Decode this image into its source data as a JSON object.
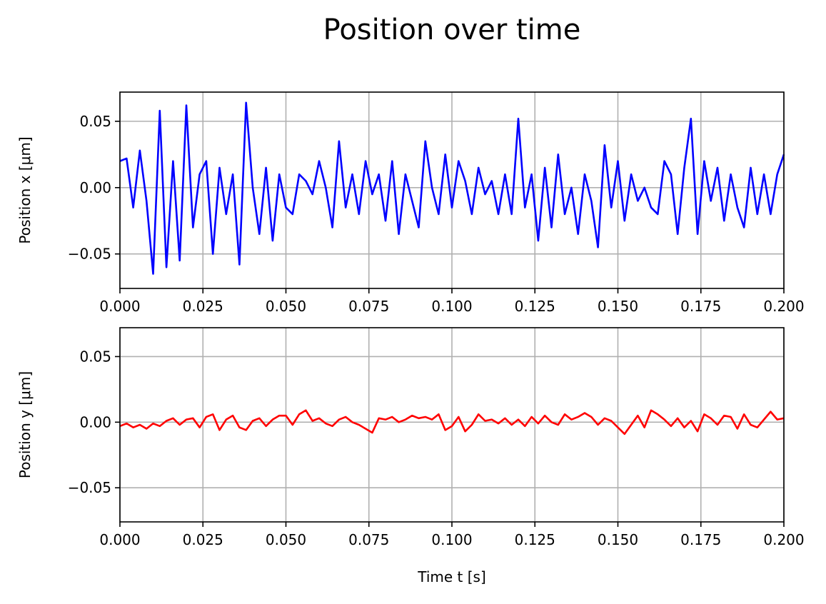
{
  "title": "Position over time",
  "chart_data": [
    {
      "type": "line",
      "ylabel": "Position x [μm]",
      "xlim": [
        0,
        0.2
      ],
      "ylim": [
        -0.076,
        0.072
      ],
      "grid": true,
      "xticks": [
        {
          "value": 0,
          "label": "0.000"
        },
        {
          "value": 0.025,
          "label": "0.025"
        },
        {
          "value": 0.05,
          "label": "0.050"
        },
        {
          "value": 0.075,
          "label": "0.075"
        },
        {
          "value": 0.1,
          "label": "0.100"
        },
        {
          "value": 0.125,
          "label": "0.125"
        },
        {
          "value": 0.15,
          "label": "0.150"
        },
        {
          "value": 0.175,
          "label": "0.175"
        },
        {
          "value": 0.2,
          "label": "0.200"
        }
      ],
      "yticks": [
        {
          "value": -0.05,
          "label": "−0.05"
        },
        {
          "value": 0,
          "label": "0.00"
        },
        {
          "value": 0.05,
          "label": "0.05"
        }
      ],
      "x": [
        0,
        0.002,
        0.004,
        0.006,
        0.008,
        0.01,
        0.012,
        0.014,
        0.016,
        0.018,
        0.02,
        0.022,
        0.024,
        0.026,
        0.028,
        0.03,
        0.032,
        0.034,
        0.036,
        0.038,
        0.04,
        0.042,
        0.044,
        0.046,
        0.048,
        0.05,
        0.052,
        0.054,
        0.056,
        0.058,
        0.06,
        0.062,
        0.064,
        0.066,
        0.068,
        0.07,
        0.072,
        0.074,
        0.076,
        0.078,
        0.08,
        0.082,
        0.084,
        0.086,
        0.088,
        0.09,
        0.092,
        0.094,
        0.096,
        0.098,
        0.1,
        0.102,
        0.104,
        0.106,
        0.108,
        0.11,
        0.112,
        0.114,
        0.116,
        0.118,
        0.12,
        0.122,
        0.124,
        0.126,
        0.128,
        0.13,
        0.132,
        0.134,
        0.136,
        0.138,
        0.14,
        0.142,
        0.144,
        0.146,
        0.148,
        0.15,
        0.152,
        0.154,
        0.156,
        0.158,
        0.16,
        0.162,
        0.164,
        0.166,
        0.168,
        0.17,
        0.172,
        0.174,
        0.176,
        0.178,
        0.18,
        0.182,
        0.184,
        0.186,
        0.188,
        0.19,
        0.192,
        0.194,
        0.196,
        0.198,
        0.2
      ],
      "series": [
        {
          "name": "Position x",
          "color": "#0000ff",
          "values": [
            0.02,
            0.022,
            -0.015,
            0.028,
            -0.01,
            -0.065,
            0.058,
            -0.06,
            0.02,
            -0.055,
            0.062,
            -0.03,
            0.01,
            0.02,
            -0.05,
            0.015,
            -0.02,
            0.01,
            -0.058,
            0.064,
            0,
            -0.035,
            0.015,
            -0.04,
            0.01,
            -0.015,
            -0.02,
            0.01,
            0.005,
            -0.005,
            0.02,
            0,
            -0.03,
            0.035,
            -0.015,
            0.01,
            -0.02,
            0.02,
            -0.005,
            0.01,
            -0.025,
            0.02,
            -0.035,
            0.01,
            -0.01,
            -0.03,
            0.035,
            0,
            -0.02,
            0.025,
            -0.015,
            0.02,
            0.005,
            -0.02,
            0.015,
            -0.005,
            0.005,
            -0.02,
            0.01,
            -0.02,
            0.052,
            -0.015,
            0.01,
            -0.04,
            0.015,
            -0.03,
            0.025,
            -0.02,
            0,
            -0.035,
            0.01,
            -0.01,
            -0.045,
            0.032,
            -0.015,
            0.02,
            -0.025,
            0.01,
            -0.01,
            0,
            -0.015,
            -0.02,
            0.02,
            0.01,
            -0.035,
            0.015,
            0.052,
            -0.035,
            0.02,
            -0.01,
            0.015,
            -0.025,
            0.01,
            -0.015,
            -0.03,
            0.015,
            -0.02,
            0.01,
            -0.02,
            0.01,
            0.025
          ]
        }
      ]
    },
    {
      "type": "line",
      "ylabel": "Position y [μm]",
      "xlabel": "Time t [s]",
      "xlim": [
        0,
        0.2
      ],
      "ylim": [
        -0.076,
        0.072
      ],
      "grid": true,
      "xticks": [
        {
          "value": 0,
          "label": "0.000"
        },
        {
          "value": 0.025,
          "label": "0.025"
        },
        {
          "value": 0.05,
          "label": "0.050"
        },
        {
          "value": 0.075,
          "label": "0.075"
        },
        {
          "value": 0.1,
          "label": "0.100"
        },
        {
          "value": 0.125,
          "label": "0.125"
        },
        {
          "value": 0.15,
          "label": "0.150"
        },
        {
          "value": 0.175,
          "label": "0.175"
        },
        {
          "value": 0.2,
          "label": "0.200"
        }
      ],
      "yticks": [
        {
          "value": -0.05,
          "label": "−0.05"
        },
        {
          "value": 0,
          "label": "0.00"
        },
        {
          "value": 0.05,
          "label": "0.05"
        }
      ],
      "x": [
        0,
        0.002,
        0.004,
        0.006,
        0.008,
        0.01,
        0.012,
        0.014,
        0.016,
        0.018,
        0.02,
        0.022,
        0.024,
        0.026,
        0.028,
        0.03,
        0.032,
        0.034,
        0.036,
        0.038,
        0.04,
        0.042,
        0.044,
        0.046,
        0.048,
        0.05,
        0.052,
        0.054,
        0.056,
        0.058,
        0.06,
        0.062,
        0.064,
        0.066,
        0.068,
        0.07,
        0.072,
        0.074,
        0.076,
        0.078,
        0.08,
        0.082,
        0.084,
        0.086,
        0.088,
        0.09,
        0.092,
        0.094,
        0.096,
        0.098,
        0.1,
        0.102,
        0.104,
        0.106,
        0.108,
        0.11,
        0.112,
        0.114,
        0.116,
        0.118,
        0.12,
        0.122,
        0.124,
        0.126,
        0.128,
        0.13,
        0.132,
        0.134,
        0.136,
        0.138,
        0.14,
        0.142,
        0.144,
        0.146,
        0.148,
        0.15,
        0.152,
        0.154,
        0.156,
        0.158,
        0.16,
        0.162,
        0.164,
        0.166,
        0.168,
        0.17,
        0.172,
        0.174,
        0.176,
        0.178,
        0.18,
        0.182,
        0.184,
        0.186,
        0.188,
        0.19,
        0.192,
        0.194,
        0.196,
        0.198,
        0.2
      ],
      "series": [
        {
          "name": "Position y",
          "color": "#ff0000",
          "values": [
            -0.003,
            -0.001,
            -0.004,
            -0.002,
            -0.005,
            -0.001,
            -0.003,
            0.001,
            0.003,
            -0.002,
            0.002,
            0.003,
            -0.004,
            0.004,
            0.006,
            -0.006,
            0.002,
            0.005,
            -0.004,
            -0.006,
            0.001,
            0.003,
            -0.003,
            0.002,
            0.005,
            0.005,
            -0.002,
            0.006,
            0.009,
            0.001,
            0.003,
            -0.001,
            -0.003,
            0.002,
            0.004,
            0,
            -0.002,
            -0.005,
            -0.008,
            0.003,
            0.002,
            0.004,
            0,
            0.002,
            0.005,
            0.003,
            0.004,
            0.002,
            0.006,
            -0.006,
            -0.003,
            0.004,
            -0.007,
            -0.002,
            0.006,
            0.001,
            0.002,
            -0.001,
            0.003,
            -0.002,
            0.002,
            -0.003,
            0.004,
            -0.001,
            0.005,
            0,
            -0.002,
            0.006,
            0.002,
            0.004,
            0.007,
            0.004,
            -0.002,
            0.003,
            0.001,
            -0.004,
            -0.009,
            -0.002,
            0.005,
            -0.004,
            0.009,
            0.006,
            0.002,
            -0.003,
            0.003,
            -0.004,
            0.001,
            -0.007,
            0.006,
            0.003,
            -0.002,
            0.005,
            0.004,
            -0.005,
            0.006,
            -0.002,
            -0.004,
            0.002,
            0.008,
            0.002,
            0.003
          ]
        }
      ]
    }
  ]
}
